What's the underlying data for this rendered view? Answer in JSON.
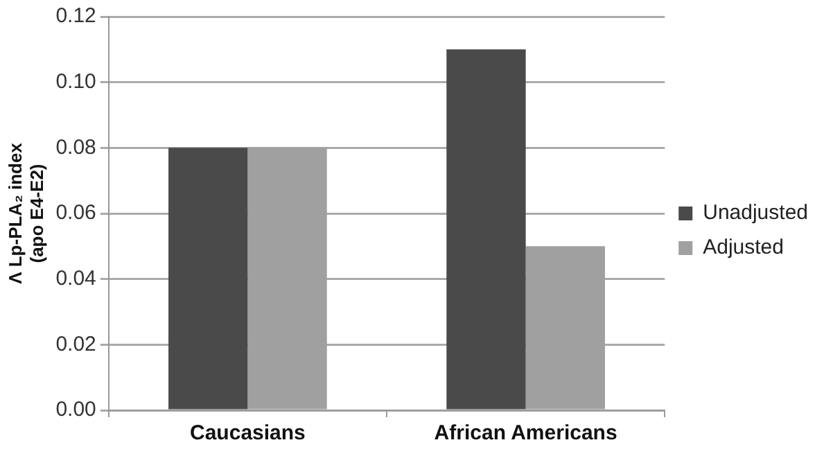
{
  "chart_data": {
    "type": "bar",
    "ylabel": "Λ Lp-PLA₂ index (apo E4-E2)",
    "categories": [
      "Caucasians",
      "African Americans"
    ],
    "series": [
      {
        "name": "Unadjusted",
        "color": "#4a4a4a",
        "values": [
          0.08,
          0.11
        ]
      },
      {
        "name": "Adjusted",
        "color": "#a0a0a0",
        "values": [
          0.08,
          0.05
        ]
      }
    ],
    "ylim": [
      0,
      0.12
    ],
    "yticks": [
      {
        "value": 0,
        "label": "0.00"
      },
      {
        "value": 0.02,
        "label": "0.02"
      },
      {
        "value": 0.04,
        "label": "0.04"
      },
      {
        "value": 0.06,
        "label": "0.06"
      },
      {
        "value": 0.08,
        "label": "0.08"
      },
      {
        "value": 0.1,
        "label": "0.10"
      },
      {
        "value": 0.12,
        "label": "0.12"
      }
    ],
    "grid": "y",
    "legend": "right"
  }
}
